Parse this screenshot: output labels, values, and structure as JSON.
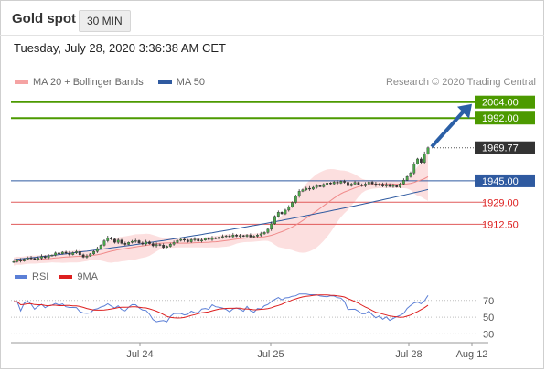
{
  "header": {
    "title": "Gold spot",
    "timeframe": "30 MIN",
    "timestamp": "Tuesday, July 28, 2020 3:36:38 AM CET"
  },
  "legend": {
    "ma20": "MA 20 + Bollinger Bands",
    "ma50": "MA 50",
    "credit": "Research © 2020 Trading Central"
  },
  "rsi_legend": {
    "rsi": "RSI",
    "ma9": "9MA"
  },
  "colors": {
    "ma20": "#f08a8a",
    "ma50": "#2f5aa0",
    "bollinger": "#fbd9d9",
    "resistance": "#4c9a00",
    "support": "#e05a5a",
    "pivot": "#2f5aa0",
    "price": "#333333",
    "arrow": "#2b5fa6",
    "rsi": "#5b7fd6",
    "rsi_ma": "#dd1f1f"
  },
  "chart_data": [
    {
      "type": "candlestick",
      "x_ticks": [
        "Jul 24",
        "Jul 25",
        "Jul 28",
        "Aug 12"
      ],
      "ylim": [
        1882,
        2012
      ],
      "levels": [
        {
          "value": 2004.0,
          "label": "2004.00",
          "kind": "resistance"
        },
        {
          "value": 1992.0,
          "label": "1992.00",
          "kind": "resistance"
        },
        {
          "value": 1969.77,
          "label": "1969.77",
          "kind": "price"
        },
        {
          "value": 1945.0,
          "label": "1945.00",
          "kind": "pivot"
        },
        {
          "value": 1929.0,
          "label": "1929.00",
          "kind": "support"
        },
        {
          "value": 1912.5,
          "label": "1912.50",
          "kind": "support"
        }
      ],
      "closes": [
        1884.6,
        1885.8,
        1885.0,
        1886.4,
        1887.3,
        1886.9,
        1886.1,
        1887.2,
        1888.4,
        1887.5,
        1888.9,
        1889.3,
        1891.0,
        1890.4,
        1891.6,
        1890.9,
        1889.8,
        1891.2,
        1892.0,
        1889.6,
        1887.9,
        1888.7,
        1890.3,
        1892.1,
        1894.3,
        1896.8,
        1900.1,
        1902.4,
        1901.3,
        1899.0,
        1900.6,
        1898.2,
        1897.4,
        1898.9,
        1899.7,
        1900.2,
        1898.5,
        1897.7,
        1899.3,
        1898.0,
        1896.4,
        1897.3,
        1896.9,
        1895.1,
        1896.0,
        1897.6,
        1898.8,
        1900.4,
        1901.2,
        1900.6,
        1899.4,
        1900.9,
        1901.3,
        1899.9,
        1900.6,
        1902.0,
        1901.1,
        1902.3,
        1901.7,
        1902.9,
        1903.3,
        1903.8,
        1903.2,
        1904.4,
        1903.6,
        1904.0,
        1903.5,
        1904.3,
        1903.0,
        1903.6,
        1904.4,
        1905.3,
        1906.4,
        1908.8,
        1912.9,
        1918.4,
        1921.5,
        1920.3,
        1923.1,
        1925.4,
        1928.9,
        1933.6,
        1937.2,
        1938.3,
        1939.4,
        1938.8,
        1940.1,
        1941.3,
        1940.6,
        1942.3,
        1943.4,
        1942.8,
        1944.0,
        1943.3,
        1944.6,
        1943.9,
        1941.3,
        1942.6,
        1943.8,
        1942.0,
        1941.3,
        1942.6,
        1944.0,
        1942.8,
        1941.7,
        1942.5,
        1941.1,
        1942.2,
        1940.8,
        1941.6,
        1940.4,
        1942.7,
        1945.5,
        1948.2,
        1950.9,
        1957.7,
        1961.4,
        1958.8,
        1965.3,
        1969.77
      ],
      "ma50_start": 1886.0,
      "ma50_end": 1938.5
    },
    {
      "type": "line",
      "title": "RSI",
      "series": [
        {
          "name": "RSI",
          "key": "rsi"
        },
        {
          "name": "9MA",
          "key": "ma"
        }
      ],
      "ylim": [
        25,
        85
      ],
      "y_ticks": [
        70,
        50,
        30
      ],
      "last_rsi": 76.0
    }
  ]
}
